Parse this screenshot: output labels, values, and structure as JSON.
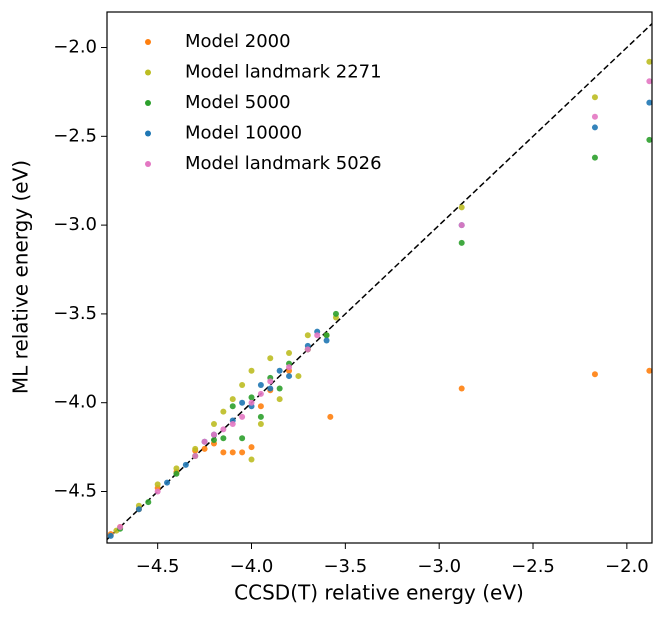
{
  "chart_data": {
    "type": "scatter",
    "x_label": "CCSD(T) relative energy (eV)",
    "y_label": "ML relative energy (eV)",
    "xlim": [
      -4.77,
      -1.866
    ],
    "ylim": [
      -4.79,
      -1.8
    ],
    "xticks": [
      {
        "value": -4.5,
        "label": "−4.5"
      },
      {
        "value": -4.0,
        "label": "−4.0"
      },
      {
        "value": -3.5,
        "label": "−3.5"
      },
      {
        "value": -3.0,
        "label": "−3.0"
      },
      {
        "value": -2.5,
        "label": "−2.5"
      },
      {
        "value": -2.0,
        "label": "−2.0"
      }
    ],
    "yticks": [
      {
        "value": -4.5,
        "label": "−4.5"
      },
      {
        "value": -4.0,
        "label": "−4.0"
      },
      {
        "value": -3.5,
        "label": "−3.5"
      },
      {
        "value": -3.0,
        "label": "−3.0"
      },
      {
        "value": -2.5,
        "label": "−2.5"
      },
      {
        "value": -2.0,
        "label": "−2.0"
      }
    ],
    "legend": "upper left",
    "series": [
      {
        "name": "Model 2000",
        "color": "#ff7f0e",
        "x": [
          -4.75,
          -4.7,
          -4.6,
          -4.5,
          -4.4,
          -4.3,
          -4.25,
          -4.2,
          -4.15,
          -4.1,
          -4.05,
          -4.0,
          -3.95,
          -3.9,
          -3.8,
          -3.7,
          -3.58,
          -2.88,
          -2.17,
          -1.88
        ],
        "values": [
          -4.74,
          -4.7,
          -4.6,
          -4.48,
          -4.39,
          -4.27,
          -4.26,
          -4.23,
          -4.28,
          -4.28,
          -4.28,
          -4.25,
          -4.02,
          -3.93,
          -3.82,
          -3.7,
          -4.08,
          -3.92,
          -3.84,
          -3.82
        ]
      },
      {
        "name": "Model landmark 2271",
        "color": "#bcbd22",
        "x": [
          -4.72,
          -4.6,
          -4.5,
          -4.4,
          -4.3,
          -4.2,
          -4.15,
          -4.1,
          -4.05,
          -4.0,
          -4.0,
          -3.95,
          -3.9,
          -3.85,
          -3.8,
          -3.75,
          -3.7,
          -3.6,
          -3.55,
          -2.88,
          -2.17,
          -1.88
        ],
        "values": [
          -4.72,
          -4.58,
          -4.46,
          -4.37,
          -4.26,
          -4.12,
          -4.05,
          -3.98,
          -3.9,
          -4.32,
          -3.82,
          -4.12,
          -3.75,
          -3.98,
          -3.72,
          -3.85,
          -3.62,
          -3.62,
          -3.52,
          -2.9,
          -2.28,
          -2.08
        ]
      },
      {
        "name": "Model 5000",
        "color": "#2ca02c",
        "x": [
          -4.7,
          -4.55,
          -4.4,
          -4.3,
          -4.2,
          -4.15,
          -4.1,
          -4.05,
          -4.0,
          -3.95,
          -3.9,
          -3.85,
          -3.8,
          -3.7,
          -3.6,
          -3.55,
          -2.88,
          -2.17,
          -1.88
        ],
        "values": [
          -4.71,
          -4.56,
          -4.4,
          -4.3,
          -4.21,
          -4.2,
          -4.02,
          -4.2,
          -3.97,
          -4.08,
          -3.86,
          -3.92,
          -3.78,
          -3.7,
          -3.62,
          -3.5,
          -3.1,
          -2.62,
          -2.52
        ]
      },
      {
        "name": "Model 10000",
        "color": "#1f77b4",
        "x": [
          -4.75,
          -4.6,
          -4.45,
          -4.35,
          -4.25,
          -4.2,
          -4.1,
          -4.05,
          -4.0,
          -3.95,
          -3.9,
          -3.85,
          -3.8,
          -3.7,
          -3.65,
          -3.6,
          -2.88,
          -2.17,
          -1.88
        ],
        "values": [
          -4.75,
          -4.6,
          -4.45,
          -4.35,
          -4.22,
          -4.18,
          -4.1,
          -4.0,
          -4.02,
          -3.9,
          -3.92,
          -3.82,
          -3.85,
          -3.68,
          -3.6,
          -3.65,
          -3.0,
          -2.45,
          -2.31
        ]
      },
      {
        "name": "Model landmark 5026",
        "color": "#e377c2",
        "x": [
          -4.7,
          -4.5,
          -4.3,
          -4.25,
          -4.2,
          -4.15,
          -4.1,
          -4.05,
          -4.0,
          -3.95,
          -3.9,
          -3.8,
          -3.7,
          -3.65,
          -2.88,
          -2.17,
          -1.88
        ],
        "values": [
          -4.7,
          -4.5,
          -4.3,
          -4.22,
          -4.18,
          -4.15,
          -4.12,
          -4.08,
          -4.0,
          -3.95,
          -3.88,
          -3.8,
          -3.7,
          -3.62,
          -3.0,
          -2.39,
          -2.19
        ]
      }
    ]
  }
}
